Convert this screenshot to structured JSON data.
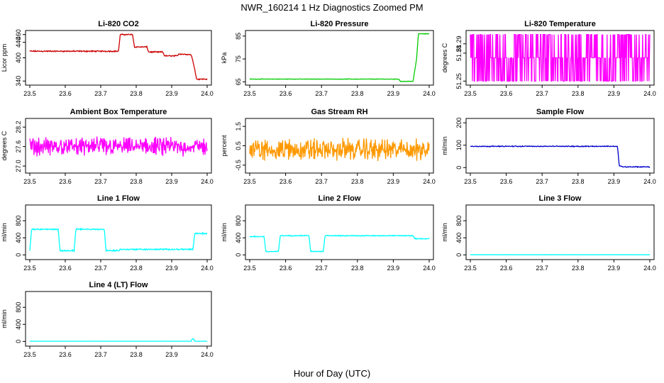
{
  "title": "NWR_160214  1 Hz Diagnostics Zoomed PM",
  "xlabel": "Hour of Day (UTC)",
  "chart_data": [
    {
      "type": "line",
      "title": "Li-820 CO2",
      "ylabel": "Licor ppm",
      "color": "#cc0000",
      "xlim": [
        23.5,
        24.0
      ],
      "ylim": [
        335,
        465
      ],
      "xticks": [
        "23.5",
        "23.6",
        "23.7",
        "23.8",
        "23.9",
        "24.0"
      ],
      "yticks": [
        340,
        400,
        440,
        460
      ],
      "ytick_labels": [
        "340",
        "400",
        "440",
        "460"
      ],
      "noise": 1.5,
      "x": [
        23.5,
        23.75,
        23.755,
        23.79,
        23.795,
        23.83,
        23.835,
        23.875,
        23.88,
        23.915,
        23.92,
        23.955,
        23.965,
        23.97,
        24.0
      ],
      "y": [
        417,
        417,
        460,
        460,
        428,
        428,
        415,
        415,
        405,
        405,
        410,
        408,
        372,
        345,
        345
      ]
    },
    {
      "type": "line",
      "title": "Li-820 Pressure",
      "ylabel": "kPa",
      "color": "#00cc00",
      "xlim": [
        23.5,
        24.0
      ],
      "ylim": [
        64.5,
        86.5
      ],
      "xticks": [
        "23.5",
        "23.6",
        "23.7",
        "23.8",
        "23.9",
        "24.0"
      ],
      "yticks": [
        65,
        75,
        85
      ],
      "ytick_labels": [
        "65",
        "75",
        "85"
      ],
      "noise": 0.1,
      "x": [
        23.5,
        23.915,
        23.92,
        23.955,
        23.965,
        23.97,
        23.975,
        24.0
      ],
      "y": [
        66.2,
        66.2,
        65.2,
        65.2,
        75.0,
        86.0,
        86.0,
        86.0
      ]
    },
    {
      "type": "line",
      "title": "Li-820 Temperature",
      "ylabel": "degrees C",
      "color": "#ff00ff",
      "xlim": [
        23.5,
        24.0
      ],
      "ylim": [
        51.248,
        51.302
      ],
      "xticks": [
        "23.5",
        "23.6",
        "23.7",
        "23.8",
        "23.9",
        "24.0"
      ],
      "yticks": [
        51.25,
        51.28,
        51.29
      ],
      "ytick_labels": [
        "51.25",
        "51.28",
        "51.29"
      ],
      "levels": [
        51.25,
        51.275,
        51.3
      ],
      "x": [
        23.5,
        24.0
      ],
      "y": [
        51.275,
        51.275
      ]
    },
    {
      "type": "line",
      "title": "Ambient Box Temperature",
      "ylabel": "degrees C",
      "color": "#ff00ff",
      "xlim": [
        23.5,
        24.0
      ],
      "ylim": [
        26.85,
        28.4
      ],
      "xticks": [
        "23.5",
        "23.6",
        "23.7",
        "23.8",
        "23.9",
        "24.0"
      ],
      "yticks": [
        27.0,
        27.6,
        28.2
      ],
      "ytick_labels": [
        "27.0",
        "27.6",
        "28.2"
      ],
      "noise": 0.28,
      "x": [
        23.5,
        24.0
      ],
      "y": [
        27.6,
        27.6
      ]
    },
    {
      "type": "line",
      "title": "Gas Stream RH",
      "ylabel": "percent",
      "color": "#ff9900",
      "xlim": [
        23.5,
        24.0
      ],
      "ylim": [
        -0.8,
        1.8
      ],
      "xticks": [
        "23.5",
        "23.6",
        "23.7",
        "23.8",
        "23.9",
        "24.0"
      ],
      "yticks": [
        -0.5,
        0.5,
        1.5
      ],
      "ytick_labels": [
        "-0.5",
        "0.5",
        "1.5"
      ],
      "noise": 0.55,
      "x": [
        23.5,
        24.0
      ],
      "y": [
        0.3,
        0.3
      ]
    },
    {
      "type": "line",
      "title": "Sample Flow",
      "ylabel": "ml/min",
      "color": "#0000cc",
      "xlim": [
        23.5,
        24.0
      ],
      "ylim": [
        -15,
        210
      ],
      "xticks": [
        "23.5",
        "23.6",
        "23.7",
        "23.8",
        "23.9",
        "24.0"
      ],
      "yticks": [
        0,
        100,
        200
      ],
      "ytick_labels": [
        "0",
        "100",
        "200"
      ],
      "noise": 2,
      "x": [
        23.5,
        23.91,
        23.915,
        23.925,
        24.0
      ],
      "y": [
        95,
        95,
        8,
        3,
        3
      ]
    },
    {
      "type": "line",
      "title": "Line 1 Flow",
      "ylabel": "ml/min",
      "color": "#00ffff",
      "xlim": [
        23.5,
        24.0
      ],
      "ylim": [
        -60,
        1120
      ],
      "xticks": [
        "23.5",
        "23.6",
        "23.7",
        "23.8",
        "23.9",
        "24.0"
      ],
      "yticks": [
        0,
        400,
        800
      ],
      "ytick_labels": [
        "0",
        "400",
        "800"
      ],
      "noise": 15,
      "x": [
        23.5,
        23.505,
        23.58,
        23.585,
        23.625,
        23.63,
        23.71,
        23.715,
        23.75,
        23.755,
        23.96,
        23.965,
        24.0
      ],
      "y": [
        100,
        600,
        600,
        100,
        100,
        600,
        600,
        100,
        100,
        130,
        130,
        500,
        500
      ]
    },
    {
      "type": "line",
      "title": "Line 2 Flow",
      "ylabel": "ml/min",
      "color": "#00ffff",
      "xlim": [
        23.5,
        24.0
      ],
      "ylim": [
        -60,
        1120
      ],
      "xticks": [
        "23.5",
        "23.6",
        "23.7",
        "23.8",
        "23.9",
        "24.0"
      ],
      "yticks": [
        0,
        400,
        800
      ],
      "ytick_labels": [
        "0",
        "400",
        "800"
      ],
      "noise": 10,
      "x": [
        23.5,
        23.54,
        23.545,
        23.58,
        23.585,
        23.665,
        23.67,
        23.705,
        23.71,
        23.955,
        23.96,
        24.0
      ],
      "y": [
        430,
        430,
        80,
        80,
        450,
        450,
        80,
        80,
        450,
        450,
        380,
        380
      ]
    },
    {
      "type": "line",
      "title": "Line 3 Flow",
      "ylabel": "ml/min",
      "color": "#00ffff",
      "xlim": [
        23.5,
        24.0
      ],
      "ylim": [
        -60,
        1120
      ],
      "xticks": [
        "23.5",
        "23.6",
        "23.7",
        "23.8",
        "23.9",
        "24.0"
      ],
      "yticks": [
        0,
        400,
        800
      ],
      "ytick_labels": [
        "0",
        "400",
        "800"
      ],
      "noise": 1,
      "x": [
        23.5,
        24.0
      ],
      "y": [
        3,
        3
      ]
    },
    {
      "type": "line",
      "title": "Line 4 (LT) Flow",
      "ylabel": "ml/min",
      "color": "#00ffff",
      "xlim": [
        23.5,
        24.0
      ],
      "ylim": [
        -60,
        1120
      ],
      "xticks": [
        "23.5",
        "23.6",
        "23.7",
        "23.8",
        "23.9",
        "24.0"
      ],
      "yticks": [
        0,
        400,
        800
      ],
      "ytick_labels": [
        "0",
        "400",
        "800"
      ],
      "noise": 1,
      "x": [
        23.5,
        23.955,
        23.958,
        23.962,
        23.965,
        24.0
      ],
      "y": [
        5,
        5,
        60,
        60,
        5,
        5
      ]
    }
  ]
}
